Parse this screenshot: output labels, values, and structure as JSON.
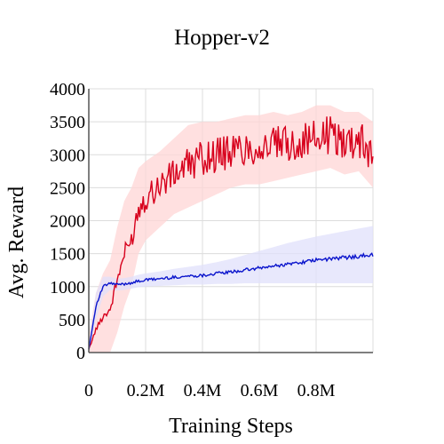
{
  "chart_data": {
    "type": "line",
    "title": "Hopper-v2",
    "xlabel": "Training Steps",
    "ylabel": "Avg. Reward",
    "xlim": [
      0,
      1000000
    ],
    "ylim": [
      0,
      4000
    ],
    "grid": true,
    "x_ticks": [
      {
        "value": 0,
        "label": "0"
      },
      {
        "value": 200000,
        "label": "0.2M"
      },
      {
        "value": 400000,
        "label": "0.4M"
      },
      {
        "value": 600000,
        "label": "0.6M"
      },
      {
        "value": 800000,
        "label": "0.8M"
      }
    ],
    "y_ticks": [
      {
        "value": 0,
        "label": "0"
      },
      {
        "value": 500,
        "label": "500"
      },
      {
        "value": 1000,
        "label": "1000"
      },
      {
        "value": 1500,
        "label": "1500"
      },
      {
        "value": 2000,
        "label": "2000"
      },
      {
        "value": 2500,
        "label": "2500"
      },
      {
        "value": 3000,
        "label": "3000"
      },
      {
        "value": 3500,
        "label": "3500"
      },
      {
        "value": 4000,
        "label": "4000"
      }
    ],
    "x": [
      0,
      25000,
      50000,
      75000,
      100000,
      125000,
      150000,
      175000,
      200000,
      250000,
      300000,
      350000,
      400000,
      450000,
      500000,
      550000,
      600000,
      650000,
      700000,
      750000,
      800000,
      850000,
      900000,
      950000,
      1000000
    ],
    "series": [
      {
        "color": "#d7001c",
        "band_color": "#ffd6d6",
        "values": [
          50,
          350,
          550,
          650,
          1100,
          1500,
          1700,
          2200,
          2350,
          2550,
          2700,
          2850,
          2950,
          3000,
          3050,
          3100,
          3100,
          3150,
          3150,
          3200,
          3250,
          3300,
          3200,
          3250,
          3000
        ],
        "upper": [
          250,
          900,
          1200,
          1400,
          1900,
          2300,
          2500,
          2800,
          2900,
          3050,
          3250,
          3450,
          3500,
          3500,
          3550,
          3600,
          3600,
          3650,
          3600,
          3650,
          3750,
          3750,
          3650,
          3650,
          3500
        ],
        "lower": [
          0,
          0,
          0,
          0,
          300,
          700,
          1000,
          1500,
          1700,
          1900,
          2100,
          2200,
          2300,
          2400,
          2500,
          2550,
          2550,
          2600,
          2650,
          2700,
          2750,
          2800,
          2700,
          2750,
          2500
        ]
      },
      {
        "color": "#0a14cc",
        "band_color": "#e0e0fb",
        "values": [
          50,
          700,
          1000,
          1050,
          1030,
          1040,
          1060,
          1080,
          1100,
          1120,
          1140,
          1160,
          1170,
          1200,
          1220,
          1250,
          1280,
          1310,
          1340,
          1370,
          1400,
          1420,
          1440,
          1460,
          1480
        ],
        "upper": [
          100,
          900,
          1150,
          1150,
          1120,
          1130,
          1150,
          1180,
          1200,
          1230,
          1270,
          1300,
          1330,
          1370,
          1420,
          1480,
          1540,
          1600,
          1660,
          1710,
          1760,
          1800,
          1840,
          1880,
          1920
        ],
        "lower": [
          0,
          500,
          850,
          950,
          940,
          950,
          970,
          990,
          1000,
          1010,
          1020,
          1030,
          1030,
          1040,
          1040,
          1050,
          1050,
          1050,
          1050,
          1050,
          1050,
          1050,
          1050,
          1050,
          1050
        ]
      }
    ]
  }
}
